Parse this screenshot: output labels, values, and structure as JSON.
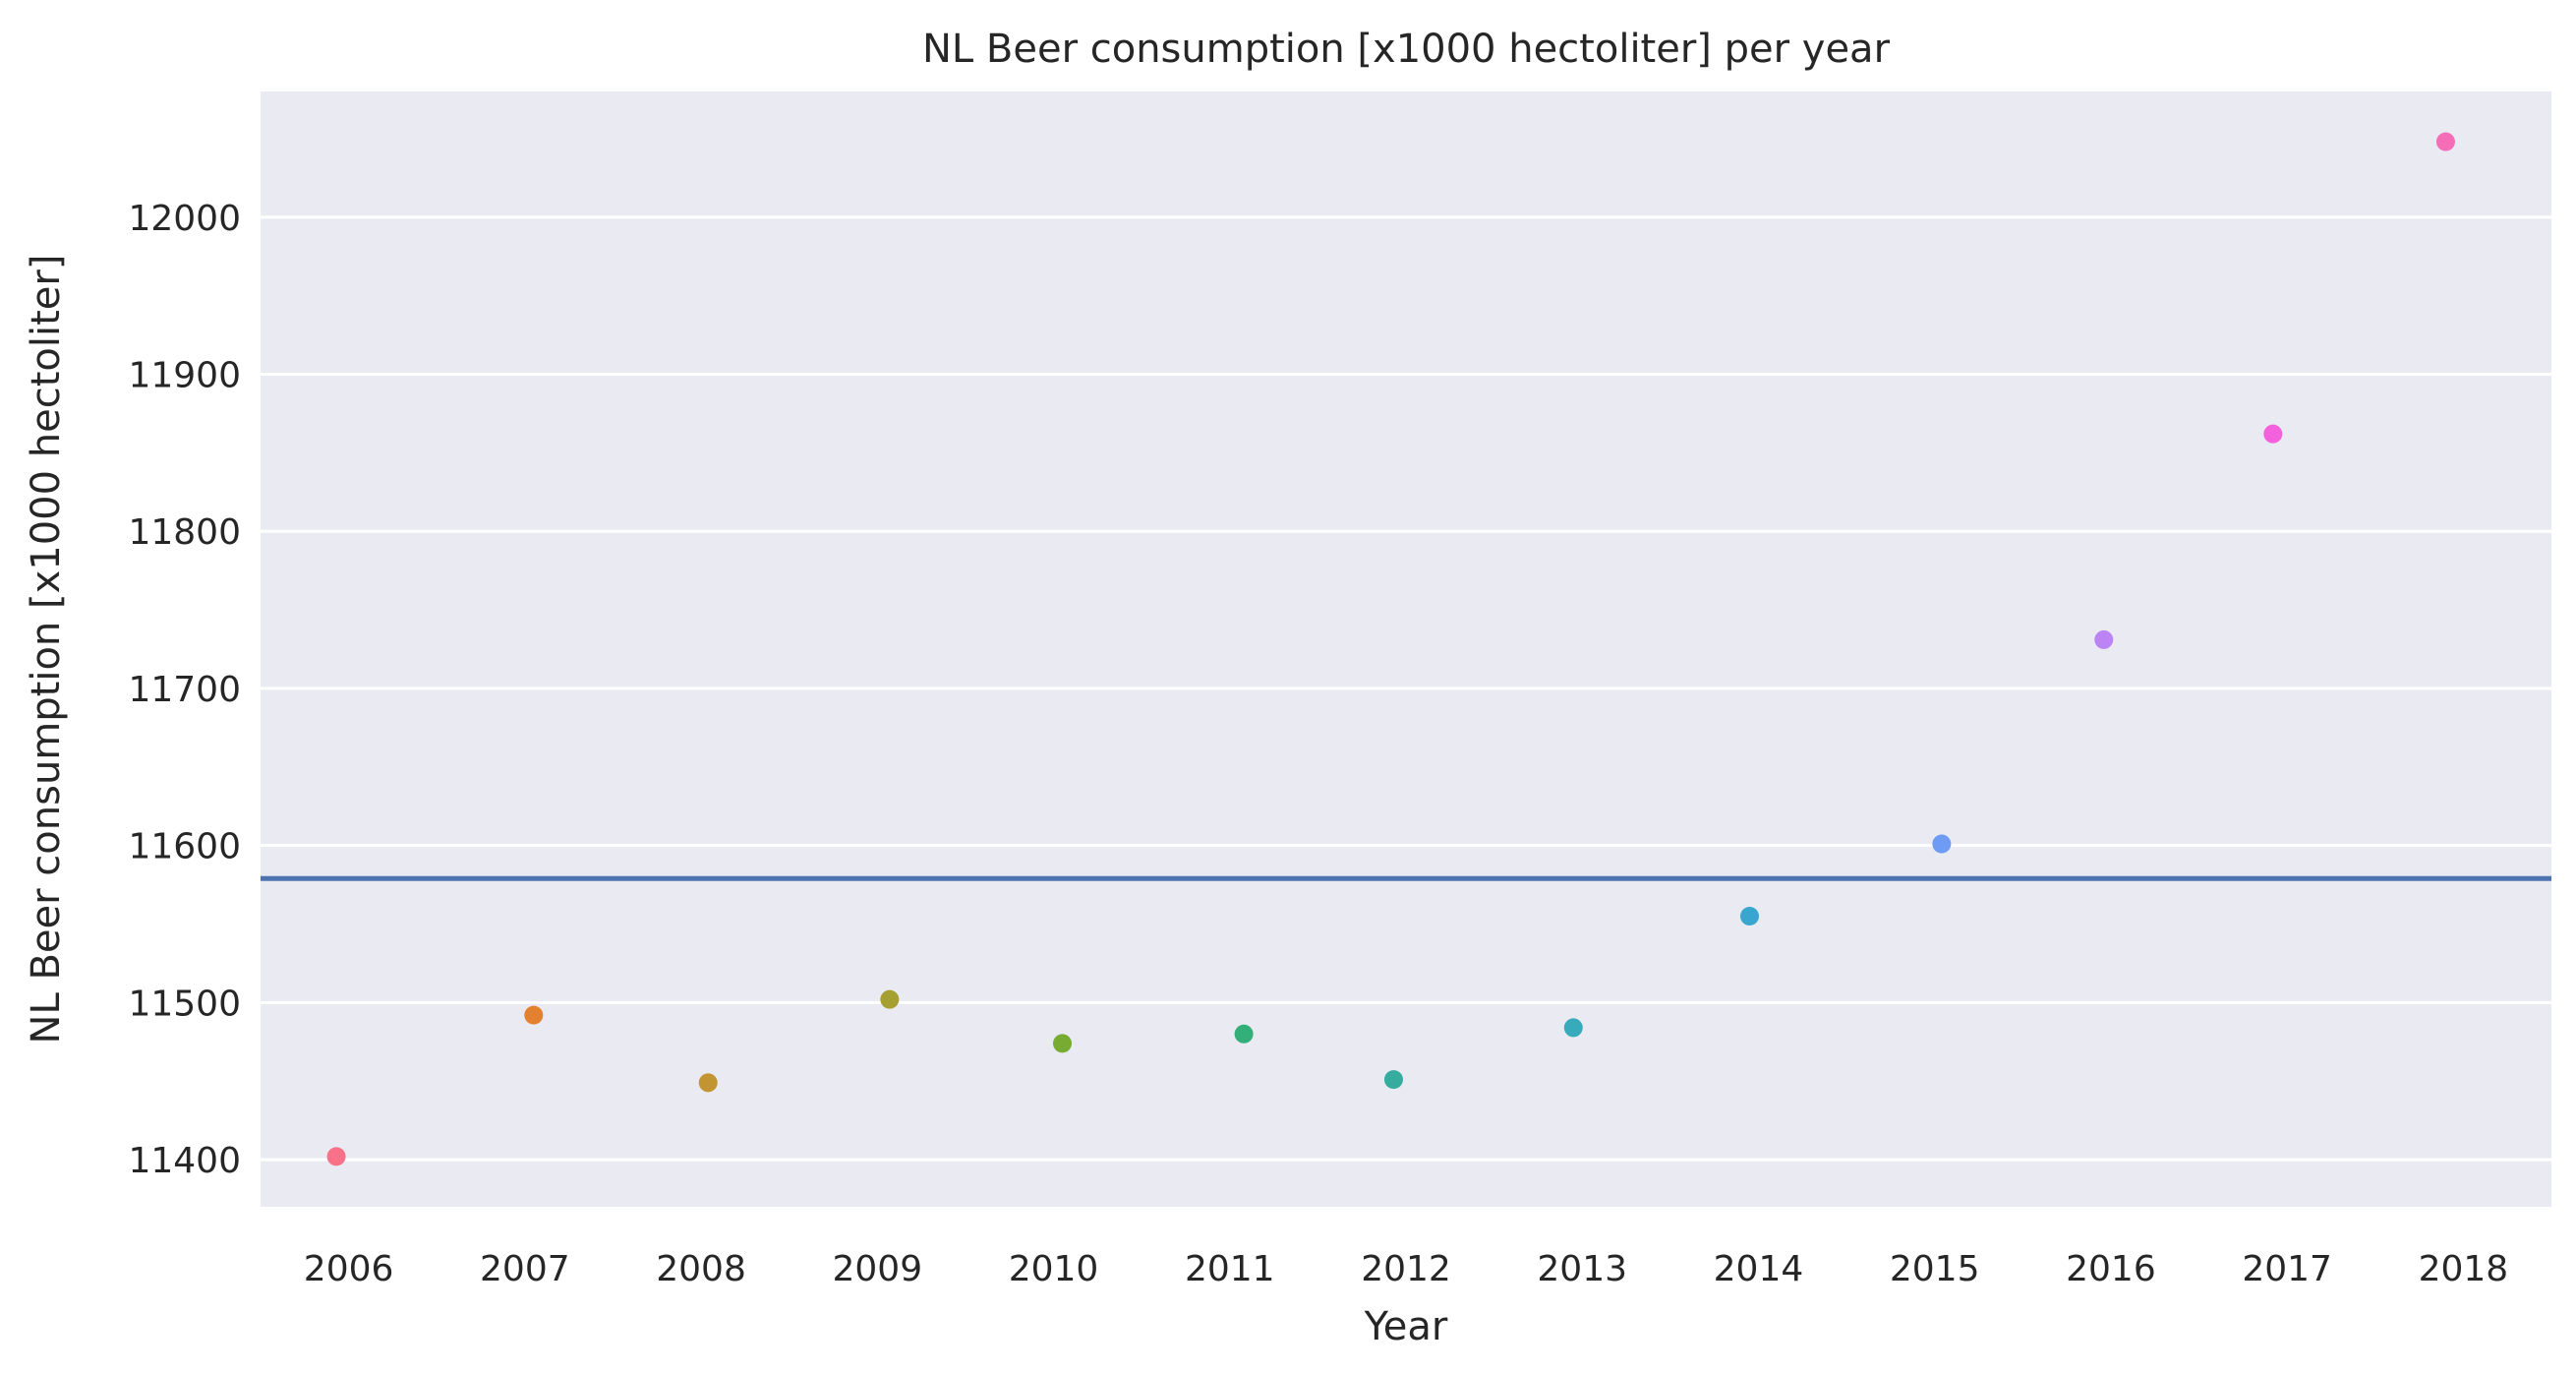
{
  "chart_data": {
    "type": "scatter",
    "title": "NL Beer consumption [x1000 hectoliter] per year",
    "xlabel": "Year",
    "ylabel": "NL Beer consumption [x1000 hectoliter]",
    "categories": [
      "2006",
      "2007",
      "2008",
      "2009",
      "2010",
      "2011",
      "2012",
      "2013",
      "2014",
      "2015",
      "2016",
      "2017",
      "2018"
    ],
    "values": [
      11402,
      11492,
      11449,
      11502,
      11474,
      11480,
      11451,
      11484,
      11555,
      11601,
      11731,
      11862,
      12048
    ],
    "jitter": [
      -0.07,
      0.05,
      0.04,
      0.07,
      0.05,
      0.08,
      -0.07,
      -0.05,
      -0.05,
      0.04,
      -0.04,
      -0.08,
      -0.1
    ],
    "point_colors": [
      "#f77189",
      "#e48131",
      "#c39532",
      "#a5a031",
      "#77ab31",
      "#33b07a",
      "#35ac9e",
      "#37aabb",
      "#39a6d0",
      "#6e9bf4",
      "#bb83f4",
      "#f461dd",
      "#f66db7"
    ],
    "yticks": [
      11400,
      11500,
      11600,
      11700,
      11800,
      11900,
      12000
    ],
    "ylim": [
      11370,
      12080
    ],
    "reference_line": {
      "value": 11579,
      "color": "#4c72b0"
    },
    "grid": true,
    "background": "#eaeaf2"
  }
}
